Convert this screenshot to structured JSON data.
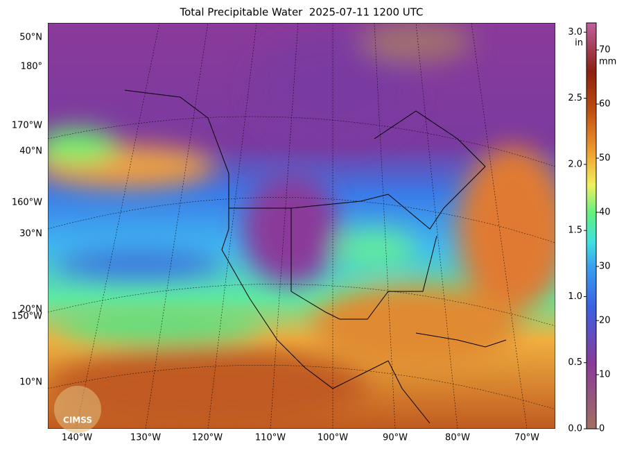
{
  "title": "Total Precipitable Water  2025-07-11 1200 UTC",
  "map": {
    "lat_labels": [
      "50°N",
      "180°",
      "170°W",
      "40°N",
      "160°W",
      "30°N",
      "20°N",
      "150°W",
      "10°N"
    ],
    "lon_labels": [
      "140°W",
      "130°W",
      "120°W",
      "110°W",
      "100°W",
      "90°W",
      "80°W",
      "70°W"
    ],
    "logo": "CIMSS"
  },
  "colorbar": {
    "unit_in": "in",
    "unit_mm": "mm",
    "in_lim": [
      0,
      3.07
    ],
    "in_ticks": [
      {
        "value": 0,
        "label": "0.0"
      },
      {
        "value": 0.5,
        "label": "0.5"
      },
      {
        "value": 1,
        "label": "1.0"
      },
      {
        "value": 1.5,
        "label": "1.5"
      },
      {
        "value": 2,
        "label": "2.0"
      },
      {
        "value": 2.5,
        "label": "2.5"
      },
      {
        "value": 3,
        "label": "3.0"
      }
    ],
    "mm_lim": [
      0,
      75
    ],
    "mm_ticks": [
      0,
      10,
      20,
      30,
      40,
      50,
      60,
      70
    ]
  }
}
